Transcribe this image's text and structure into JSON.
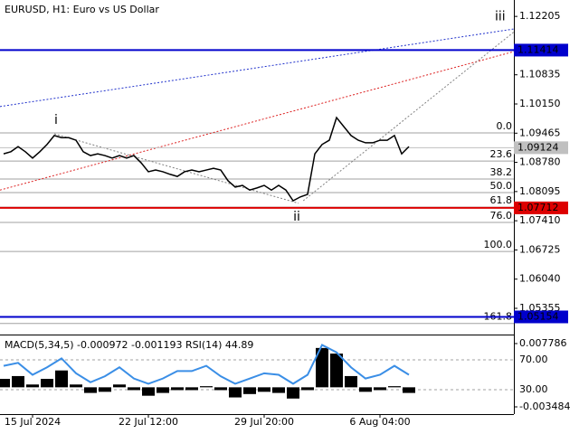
{
  "chart_data": {
    "type": "line",
    "title": "EURUSD, H1:  Euro vs US Dollar",
    "x": [
      0,
      1,
      2,
      3,
      4,
      5,
      6,
      7,
      8,
      9,
      10,
      11,
      12,
      13,
      14,
      15,
      16,
      17,
      18,
      19,
      20,
      21,
      22,
      23,
      24,
      25,
      26,
      27,
      28,
      29,
      30,
      31,
      32,
      33,
      34,
      35,
      36,
      37,
      38,
      39,
      40,
      41,
      42,
      43,
      44,
      45,
      46,
      47,
      48,
      49,
      50,
      51,
      52,
      53,
      54,
      55,
      56
    ],
    "series": [
      {
        "color": "#000000",
        "values": [
          1.0898,
          1.0903,
          1.0915,
          1.0903,
          1.0888,
          1.0903,
          1.092,
          1.0941,
          1.0936,
          1.0936,
          1.093,
          1.0903,
          1.0894,
          1.0898,
          1.0894,
          1.0888,
          1.0894,
          1.0888,
          1.0894,
          1.0877,
          1.0856,
          1.086,
          1.0856,
          1.085,
          1.0845,
          1.0856,
          1.086,
          1.0856,
          1.086,
          1.0864,
          1.086,
          1.0835,
          1.082,
          1.0824,
          1.0813,
          1.0818,
          1.0824,
          1.0813,
          1.0824,
          1.0813,
          1.0788,
          1.0797,
          1.0803,
          1.0898,
          1.092,
          1.093,
          1.0983,
          1.0962,
          1.0941,
          1.093,
          1.0924,
          1.0924,
          1.093,
          1.093,
          1.0941,
          1.0898,
          1.0915
        ]
      }
    ],
    "xlim": [
      -0.5,
      70.5
    ],
    "xticks": [
      {
        "value": 4,
        "label": "15 Jul 2024"
      },
      {
        "value": 20,
        "label": "22 Jul 12:00"
      },
      {
        "value": 36,
        "label": "29 Jul 20:00"
      },
      {
        "value": 52,
        "label": "6 Aug 04:00"
      }
    ],
    "ylim": [
      1.0474,
      1.1259
    ],
    "yticks": [
      1.12205,
      1.10835,
      {
        "value": 1.1015,
        "label": "1.10150"
      },
      1.09465,
      {
        "value": 1.0878,
        "label": "1.08780"
      },
      1.08095,
      {
        "value": 1.0741,
        "label": "1.07410"
      },
      1.06725,
      {
        "value": 1.0604,
        "label": "1.06040"
      },
      1.05355
    ],
    "levels": [
      {
        "value": 1.11414,
        "color": "#0000cc"
      },
      {
        "value": 1.09124,
        "color": "#c0c0c0"
      },
      {
        "value": 1.07712,
        "color": "#dd0000"
      },
      {
        "value": 1.05154,
        "color": "#0000cc"
      }
    ],
    "fibonacci": [
      {
        "label": "0.0",
        "value": 1.0947
      },
      {
        "label": "23.6",
        "value": 1.0881
      },
      {
        "label": "38.2",
        "value": 1.0839
      },
      {
        "label": "50.0",
        "value": 1.0807
      },
      {
        "label": "61.8",
        "value": 1.0773
      },
      {
        "label": "76.0",
        "value": 1.0737
      },
      {
        "label": "100.0",
        "value": 1.0669
      },
      {
        "label": "161.8",
        "value": 1.05
      }
    ],
    "trendlines": [
      {
        "color": "#2233cc",
        "x": [
          -0.5,
          70.5
        ],
        "y": [
          1.1009,
          1.1191
        ]
      },
      {
        "color": "#dd2222",
        "x": [
          -0.5,
          70.5
        ],
        "y": [
          1.0813,
          1.1138
        ]
      },
      {
        "color": "#808080",
        "x": [
          7,
          40.75
        ],
        "y": [
          1.0945,
          1.0782
        ]
      },
      {
        "color": "#808080",
        "x": [
          41.4,
          70.5
        ],
        "y": [
          1.0788,
          1.1184
        ]
      }
    ],
    "annotations": [
      {
        "text": "i",
        "x": 7.25,
        "y": 1.0977
      },
      {
        "text": "ii",
        "x": 40.5,
        "y": 1.075
      },
      {
        "text": "iii",
        "x": 68.6,
        "y": 1.122
      }
    ],
    "indicator": {
      "label": "MACD(5,34,5) -0.000972 -0.001193 RSI(14) 44.89",
      "x": [
        0,
        2,
        4,
        6,
        8,
        10,
        12,
        14,
        16,
        18,
        20,
        22,
        24,
        26,
        28,
        30,
        32,
        34,
        36,
        38,
        40,
        42,
        44,
        46,
        48,
        50,
        52,
        54,
        56
      ],
      "macd": {
        "color": "#000000",
        "values": [
          0.0015,
          0.002,
          0.0005,
          0.0015,
          0.003,
          0.0005,
          -0.001,
          -0.0008,
          0.0005,
          -0.0005,
          -0.0015,
          -0.001,
          -0.0005,
          -0.0005,
          0.0002,
          -0.0005,
          -0.0018,
          -0.0012,
          -0.0008,
          -0.001,
          -0.002,
          -0.0005,
          0.007,
          0.006,
          0.002,
          -0.0008,
          -0.0005,
          0.0002,
          -0.001
        ]
      },
      "rsi": {
        "color": "#3a8ee6",
        "values": [
          62,
          66,
          50,
          60,
          72,
          52,
          40,
          48,
          60,
          45,
          38,
          45,
          55,
          55,
          62,
          48,
          38,
          45,
          52,
          50,
          38,
          50,
          90,
          80,
          60,
          45,
          50,
          62,
          50
        ]
      },
      "macd_ylim": [
        -0.00477,
        0.00907
      ],
      "macd_yticks": [
        0.007786,
        -0.003484
      ],
      "rsi_ylim": [
        -2.7,
        101.5
      ],
      "rsi_yticks": [
        {
          "value": 70,
          "label": "70.00"
        },
        {
          "value": 30,
          "label": "30.00"
        }
      ]
    }
  }
}
